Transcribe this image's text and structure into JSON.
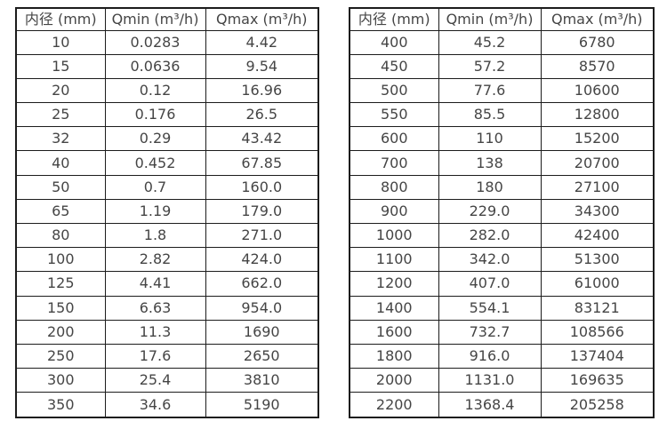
{
  "page": {
    "background_color": "#ffffff",
    "text_color": "#454545",
    "border_color": "#1c1c1c"
  },
  "tables": [
    {
      "name": "flow-spec-table-small-diameters",
      "headers": [
        "内径 (mm)",
        "Qmin (m³/h)",
        "Qmax (m³/h)"
      ],
      "rows": [
        [
          "10",
          "0.0283",
          "4.42"
        ],
        [
          "15",
          "0.0636",
          "9.54"
        ],
        [
          "20",
          "0.12",
          "16.96"
        ],
        [
          "25",
          "0.176",
          "26.5"
        ],
        [
          "32",
          "0.29",
          "43.42"
        ],
        [
          "40",
          "0.452",
          "67.85"
        ],
        [
          "50",
          "0.7",
          "160.0"
        ],
        [
          "65",
          "1.19",
          "179.0"
        ],
        [
          "80",
          "1.8",
          "271.0"
        ],
        [
          "100",
          "2.82",
          "424.0"
        ],
        [
          "125",
          "4.41",
          "662.0"
        ],
        [
          "150",
          "6.63",
          "954.0"
        ],
        [
          "200",
          "11.3",
          "1690"
        ],
        [
          "250",
          "17.6",
          "2650"
        ],
        [
          "300",
          "25.4",
          "3810"
        ],
        [
          "350",
          "34.6",
          "5190"
        ]
      ]
    },
    {
      "name": "flow-spec-table-large-diameters",
      "headers": [
        "内径 (mm)",
        "Qmin (m³/h)",
        "Qmax (m³/h)"
      ],
      "rows": [
        [
          "400",
          "45.2",
          "6780"
        ],
        [
          "450",
          "57.2",
          "8570"
        ],
        [
          "500",
          "77.6",
          "10600"
        ],
        [
          "550",
          "85.5",
          "12800"
        ],
        [
          "600",
          "110",
          "15200"
        ],
        [
          "700",
          "138",
          "20700"
        ],
        [
          "800",
          "180",
          "27100"
        ],
        [
          "900",
          "229.0",
          "34300"
        ],
        [
          "1000",
          "282.0",
          "42400"
        ],
        [
          "1100",
          "342.0",
          "51300"
        ],
        [
          "1200",
          "407.0",
          "61000"
        ],
        [
          "1400",
          "554.1",
          "83121"
        ],
        [
          "1600",
          "732.7",
          "108566"
        ],
        [
          "1800",
          "916.0",
          "137404"
        ],
        [
          "2000",
          "1131.0",
          "169635"
        ],
        [
          "2200",
          "1368.4",
          "205258"
        ]
      ]
    }
  ]
}
